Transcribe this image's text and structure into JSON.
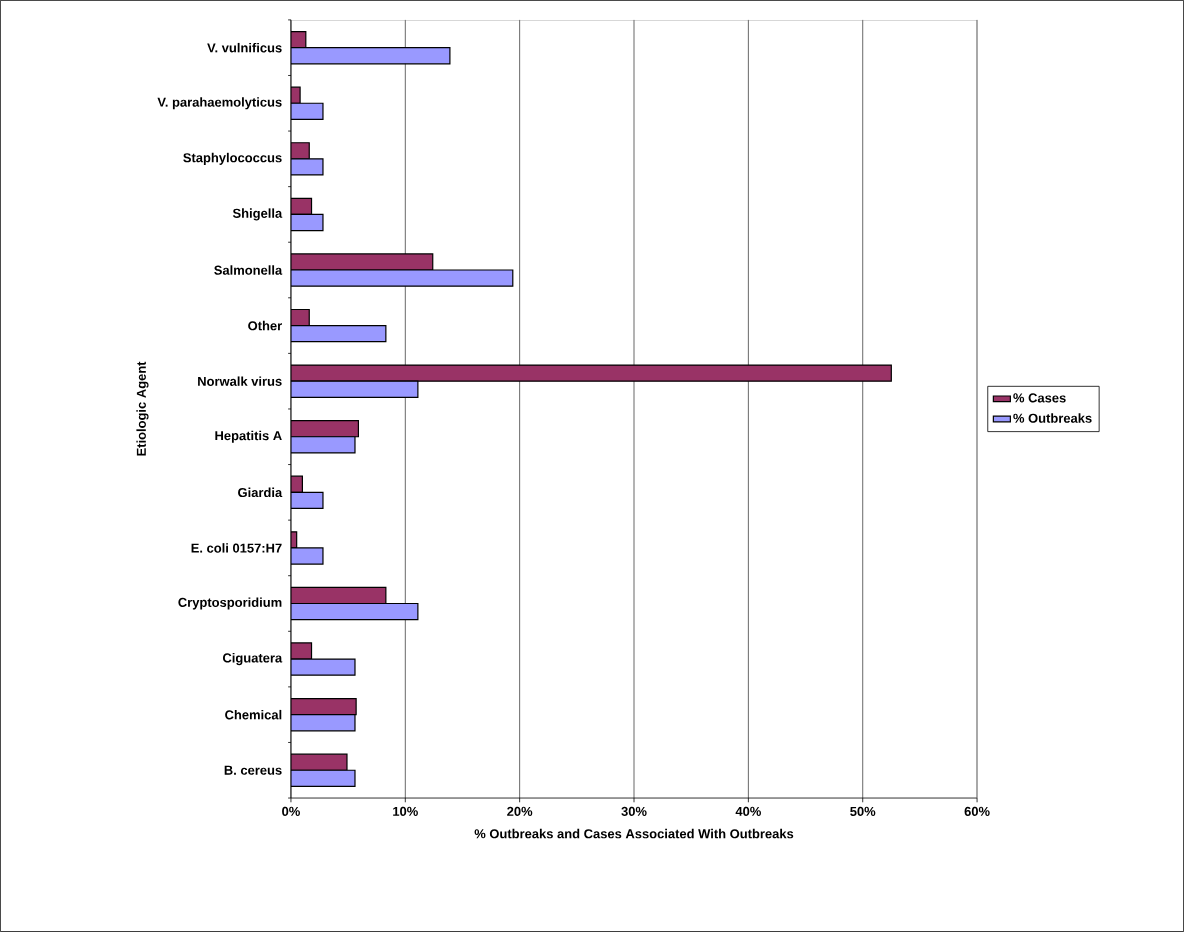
{
  "chart_data": {
    "type": "bar",
    "orientation": "horizontal",
    "xlabel": "% Outbreaks and Cases Associated With Outbreaks",
    "ylabel": "Etiologic Agent",
    "categories": [
      "V. vulnificus",
      "V. parahaemolyticus",
      "Staphylococcus",
      "Shigella",
      "Salmonella",
      "Other",
      "Norwalk virus",
      "Hepatitis A",
      "Giardia",
      "E. coli 0157:H7",
      "Cryptosporidium",
      "Ciguatera",
      "Chemical",
      "B. cereus"
    ],
    "series": [
      {
        "name": "% Cases",
        "color": "#993366",
        "values": [
          1.3,
          0.8,
          1.6,
          1.8,
          12.4,
          1.6,
          52.5,
          5.9,
          1.0,
          0.5,
          8.3,
          1.8,
          5.7,
          4.9
        ]
      },
      {
        "name": "% Outbreaks",
        "color": "#9999ff",
        "values": [
          13.9,
          2.8,
          2.8,
          2.8,
          19.4,
          8.3,
          11.1,
          5.6,
          2.8,
          2.8,
          11.1,
          5.6,
          5.6,
          5.6
        ]
      }
    ],
    "xlim": [
      0,
      60
    ],
    "xticks": [
      {
        "value": 0,
        "label": "0%"
      },
      {
        "value": 10,
        "label": "10%"
      },
      {
        "value": 20,
        "label": "20%"
      },
      {
        "value": 30,
        "label": "30%"
      },
      {
        "value": 40,
        "label": "40%"
      },
      {
        "value": 50,
        "label": "50%"
      },
      {
        "value": 60,
        "label": "60%"
      }
    ],
    "grid": "x",
    "legend": "right"
  }
}
